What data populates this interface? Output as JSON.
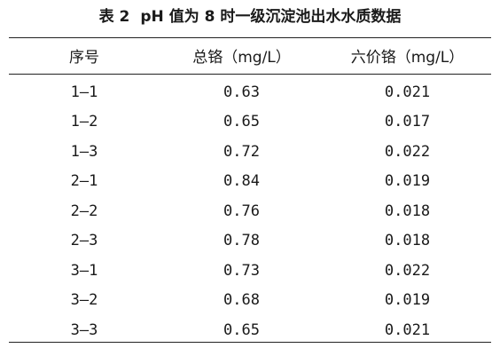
{
  "caption": {
    "label": "表 2",
    "title": "pH 值为 8 时一级沉淀池出水水质数据"
  },
  "table": {
    "headers": [
      "序号",
      "总铬（mg/L）",
      "六价铬（mg/L）"
    ],
    "rows": [
      [
        "1—1",
        "0.63",
        "0.021"
      ],
      [
        "1—2",
        "0.65",
        "0.017"
      ],
      [
        "1—3",
        "0.72",
        "0.022"
      ],
      [
        "2—1",
        "0.84",
        "0.019"
      ],
      [
        "2—2",
        "0.76",
        "0.018"
      ],
      [
        "2—3",
        "0.78",
        "0.018"
      ],
      [
        "3—1",
        "0.73",
        "0.022"
      ],
      [
        "3—2",
        "0.68",
        "0.019"
      ],
      [
        "3—3",
        "0.65",
        "0.021"
      ]
    ]
  }
}
